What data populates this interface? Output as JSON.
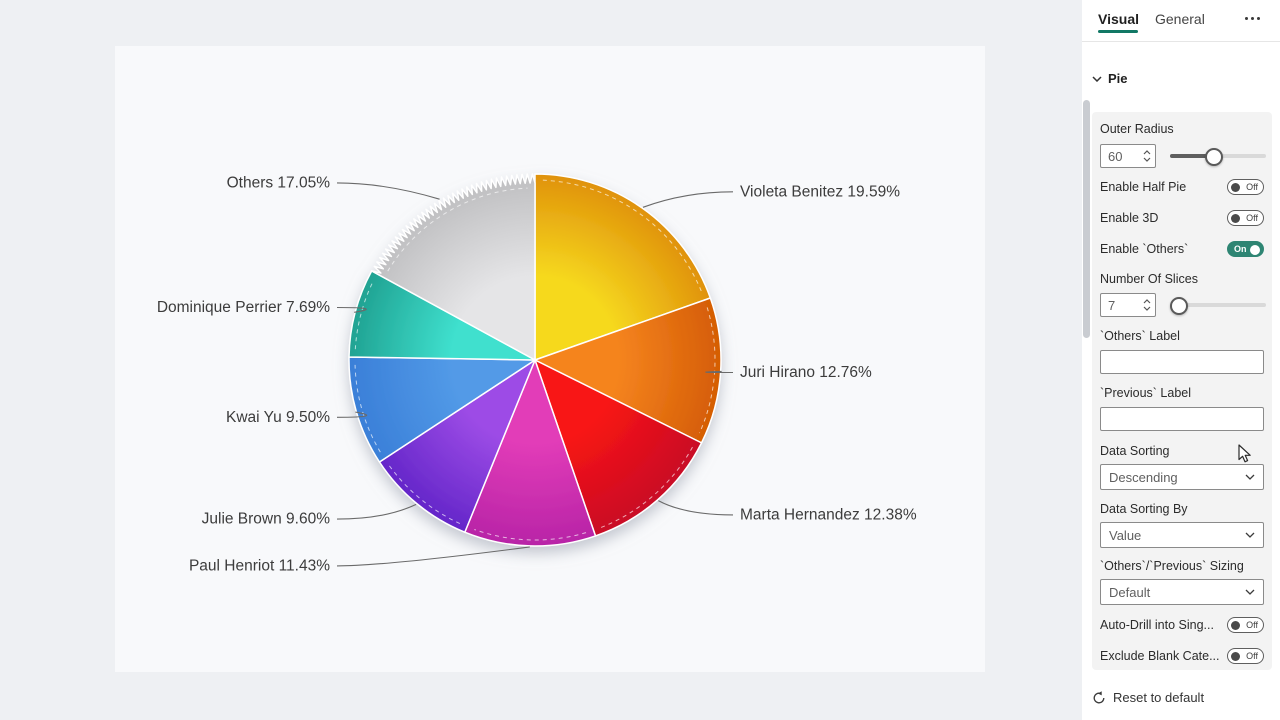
{
  "panel": {
    "tabs": [
      {
        "label": "Visual",
        "active": true
      },
      {
        "label": "General",
        "active": false
      }
    ],
    "section_title": "Pie",
    "controls": {
      "outer_radius": {
        "label": "Outer Radius",
        "value": "60",
        "slider_pct": 45
      },
      "enable_half_pie": {
        "label": "Enable Half Pie",
        "state": "Off"
      },
      "enable_3d": {
        "label": "Enable 3D",
        "state": "Off"
      },
      "enable_others": {
        "label": "Enable `Others`",
        "state": "On"
      },
      "number_of_slices": {
        "label": "Number Of Slices",
        "value": "7",
        "slider_pct": 2
      },
      "others_label": {
        "label": "`Others` Label",
        "value": ""
      },
      "previous_label": {
        "label": "`Previous` Label",
        "value": ""
      },
      "data_sorting": {
        "label": "Data Sorting",
        "value": "Descending"
      },
      "data_sorting_by": {
        "label": "Data Sorting By",
        "value": "Value"
      },
      "others_previous_sizing": {
        "label": "`Others`/`Previous` Sizing",
        "value": "Default"
      },
      "auto_drill": {
        "label": "Auto-Drill into Sing...",
        "state": "Off"
      },
      "exclude_blank": {
        "label": "Exclude Blank Cate...",
        "state": "Off"
      }
    },
    "reset_label": "Reset to default"
  },
  "chart_data": {
    "type": "pie",
    "direction": "clockwise",
    "start_angle_deg": 0,
    "legend": "none",
    "slices": [
      {
        "name": "Violeta Benitez",
        "pct": 19.59,
        "label": "Violeta Benitez 19.59%",
        "color_inner": "#f6d91f",
        "color_outer": "#e0920a",
        "jagged": false
      },
      {
        "name": "Juri Hirano",
        "pct": 12.76,
        "label": "Juri Hirano 12.76%",
        "color_inner": "#f5841f",
        "color_outer": "#d55d05",
        "jagged": false
      },
      {
        "name": "Marta Hernandez",
        "pct": 12.38,
        "label": "Marta Hernandez 12.38%",
        "color_inner": "#f81414",
        "color_outer": "#c90c26",
        "jagged": false
      },
      {
        "name": "Paul Henriot",
        "pct": 11.43,
        "label": "Paul Henriot 11.43%",
        "color_inner": "#e23cb8",
        "color_outer": "#b824a7",
        "jagged": false
      },
      {
        "name": "Julie Brown",
        "pct": 9.6,
        "label": "Julie Brown 9.60%",
        "color_inner": "#9d4ce6",
        "color_outer": "#6426c9",
        "jagged": false
      },
      {
        "name": "Kwai Yu",
        "pct": 9.5,
        "label": "Kwai Yu 9.50%",
        "color_inner": "#529ae7",
        "color_outer": "#3a7fd8",
        "jagged": false
      },
      {
        "name": "Dominique Perrier",
        "pct": 7.69,
        "label": "Dominique Perrier 7.69%",
        "color_inner": "#3fe0ce",
        "color_outer": "#20a292",
        "jagged": false
      },
      {
        "name": "Others",
        "pct": 17.05,
        "label": "Others 17.05%",
        "color_inner": "#e5e5e7",
        "color_outer": "#bebec0",
        "jagged": true
      }
    ]
  }
}
